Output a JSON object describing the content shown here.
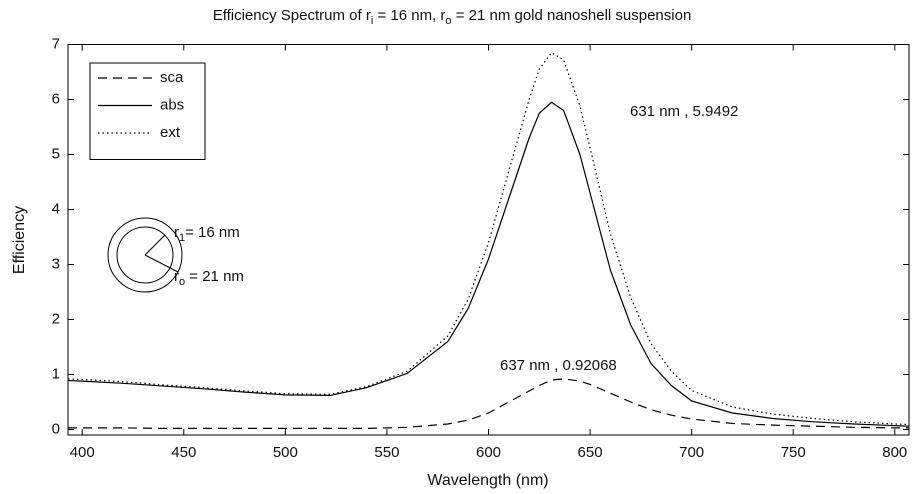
{
  "chart_data": {
    "type": "line",
    "title": [
      "Efficiency Spectrum of r",
      "i",
      " = 16 nm, r",
      "o",
      " = 21 nm gold nanoshell suspension"
    ],
    "x_label": "Wavelength (nm)",
    "y_label": "Efficiency",
    "x": [
      393,
      400,
      420,
      440,
      460,
      480,
      500,
      522,
      540,
      560,
      580,
      590,
      600,
      610,
      620,
      625,
      631,
      637,
      645,
      650,
      660,
      670,
      680,
      690,
      700,
      720,
      740,
      760,
      780,
      800,
      807
    ],
    "series": [
      {
        "name": "sca",
        "color": "#000000",
        "dash": "dashed",
        "values": [
          0.03,
          0.03,
          0.03,
          0.02,
          0.02,
          0.02,
          0.02,
          0.02,
          0.02,
          0.04,
          0.1,
          0.17,
          0.3,
          0.5,
          0.7,
          0.8,
          0.9,
          0.92068,
          0.88,
          0.82,
          0.66,
          0.5,
          0.36,
          0.26,
          0.19,
          0.11,
          0.08,
          0.06,
          0.04,
          0.03,
          0.03
        ]
      },
      {
        "name": "abs",
        "color": "#000000",
        "dash": "solid",
        "values": [
          0.89,
          0.88,
          0.84,
          0.79,
          0.74,
          0.68,
          0.63,
          0.62,
          0.76,
          1.02,
          1.6,
          2.2,
          3.1,
          4.2,
          5.3,
          5.75,
          5.9492,
          5.8,
          5.0,
          4.3,
          2.9,
          1.9,
          1.2,
          0.8,
          0.52,
          0.3,
          0.2,
          0.14,
          0.1,
          0.07,
          0.06
        ]
      },
      {
        "name": "ext",
        "color": "#000000",
        "dash": "dotted",
        "values": [
          0.92,
          0.91,
          0.87,
          0.81,
          0.76,
          0.7,
          0.65,
          0.64,
          0.78,
          1.06,
          1.7,
          2.37,
          3.4,
          4.7,
          6.0,
          6.55,
          6.85,
          6.72,
          5.88,
          5.12,
          3.56,
          2.4,
          1.56,
          1.06,
          0.71,
          0.41,
          0.28,
          0.2,
          0.14,
          0.1,
          0.09
        ]
      }
    ],
    "xlim": [
      393,
      807
    ],
    "ylim": [
      -0.1,
      7
    ],
    "xticks": [
      400,
      450,
      500,
      550,
      600,
      650,
      700,
      750,
      800
    ],
    "yticks": [
      0,
      1,
      2,
      3,
      4,
      5,
      6,
      7
    ],
    "legend": "upper left",
    "annotations": [
      {
        "text": "631 nm , 5.9492"
      },
      {
        "text": "637 nm , 0.92068"
      },
      {
        "text": [
          "r",
          "1",
          "= 16 nm"
        ]
      },
      {
        "text": [
          "r",
          "o",
          " = 21 nm"
        ]
      }
    ]
  }
}
